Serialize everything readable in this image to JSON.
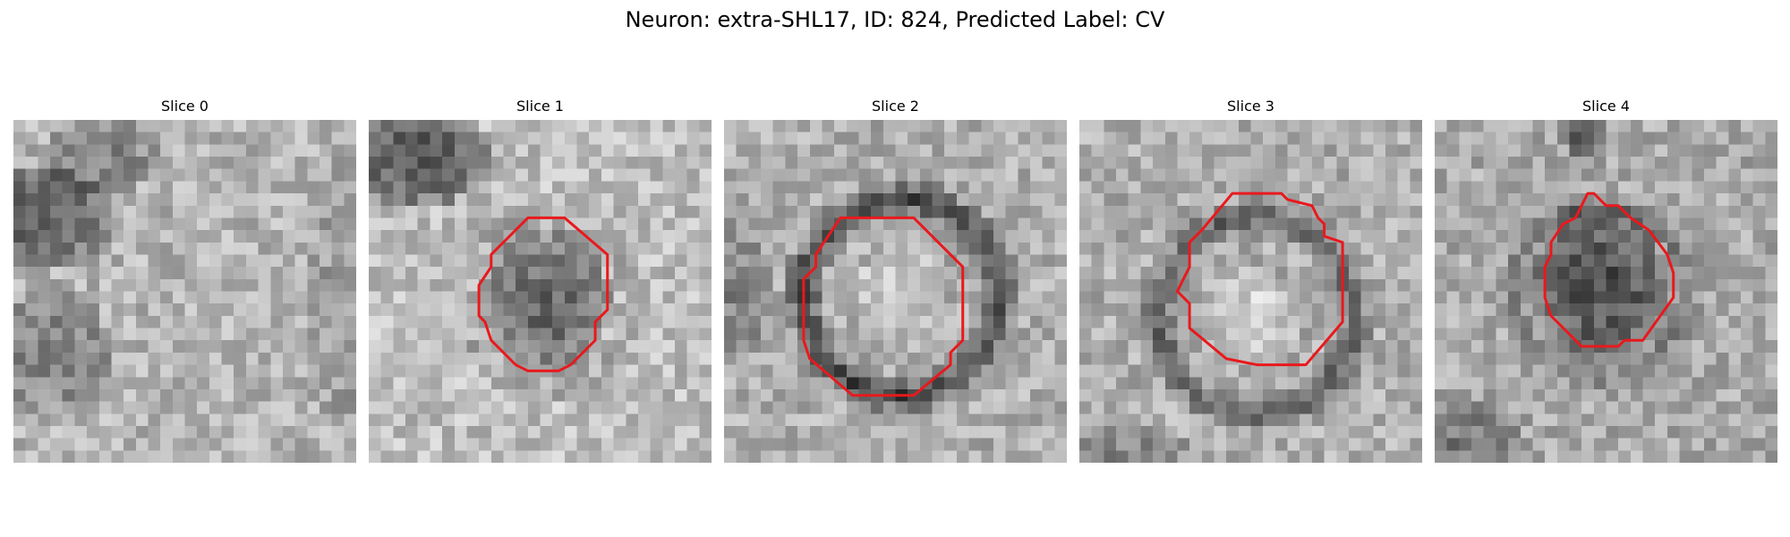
{
  "title": "Neuron: extra-SHL17, ID: 824, Predicted Label: CV",
  "overlay_color": "#e8191d",
  "slices": [
    {
      "label": "Slice 0"
    },
    {
      "label": "Slice 1"
    },
    {
      "label": "Slice 2"
    },
    {
      "label": "Slice 3"
    },
    {
      "label": "Slice 4"
    }
  ]
}
